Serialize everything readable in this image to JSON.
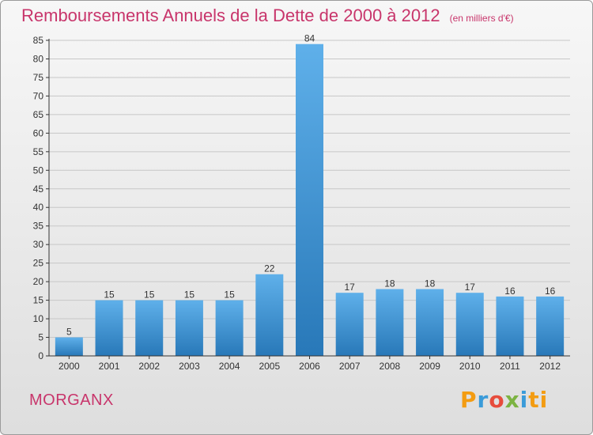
{
  "header": {
    "title": "Remboursements Annuels de la Dette de 2000 à 2012",
    "unit": "(en milliers d'€)"
  },
  "footer": {
    "commune": "MORGANX",
    "logo": "Proxiti"
  },
  "colors": {
    "title": "#c8356b",
    "bar_top": "#5fb0ea",
    "bar_bottom": "#2878b8",
    "grid": "#c7c7c7",
    "axis": "#333333"
  },
  "chart_data": {
    "type": "bar",
    "title": "Remboursements Annuels de la Dette de 2000 à 2012",
    "xlabel": "",
    "ylabel": "",
    "categories": [
      "2000",
      "2001",
      "2002",
      "2003",
      "2004",
      "2005",
      "2006",
      "2007",
      "2008",
      "2009",
      "2010",
      "2011",
      "2012"
    ],
    "values": [
      5,
      15,
      15,
      15,
      15,
      22,
      84,
      17,
      18,
      18,
      17,
      16,
      16
    ],
    "ylim": [
      0,
      85
    ],
    "yticks": [
      0,
      5,
      10,
      15,
      20,
      25,
      30,
      35,
      40,
      45,
      50,
      55,
      60,
      65,
      70,
      75,
      80,
      85
    ],
    "grid": true,
    "data_labels": true
  }
}
